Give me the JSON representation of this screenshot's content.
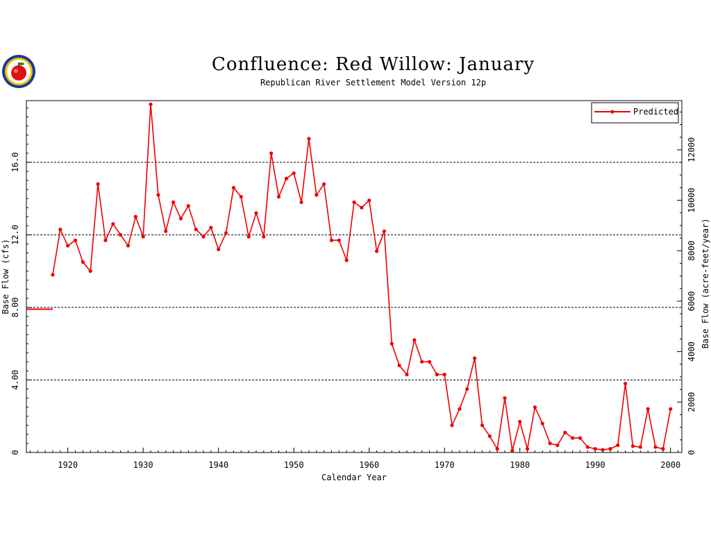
{
  "title": "Confluence: Red Willow: January",
  "subtitle": "Republican River Settlement Model Version 12p",
  "logo": {
    "icon": "apple-seal-icon"
  },
  "colors": {
    "series": "#ee0000",
    "axis": "#000000"
  },
  "chart_data": {
    "type": "line",
    "title": "Confluence: Red Willow: January",
    "xlabel": "Calendar Year",
    "ylabel": "Base Flow (cfs)",
    "y2label": "Base Flow (acre-feet/year)",
    "xlim": [
      1914.5,
      2001.5
    ],
    "ylim": [
      0,
      19.4
    ],
    "y2lim": [
      0,
      13950
    ],
    "xticks": [
      1920,
      1930,
      1940,
      1950,
      1960,
      1970,
      1980,
      1990,
      2000
    ],
    "xtick_labels": [
      "1920",
      "1930",
      "1940",
      "1950",
      "1960",
      "1970",
      "1980",
      "1990",
      "2000"
    ],
    "yticks": [
      0,
      4,
      8,
      12,
      16
    ],
    "ytick_labels": [
      "0",
      "4.00",
      "8.00",
      "12.0",
      "16.0"
    ],
    "y2ticks": [
      0,
      2000,
      4000,
      6000,
      8000,
      10000,
      12000
    ],
    "y2tick_labels": [
      "0",
      "2000",
      "4000",
      "6000",
      "8000",
      "10000",
      "12000"
    ],
    "grid_y": [
      4,
      8,
      12,
      16
    ],
    "legend": {
      "position": "top-right",
      "entries": [
        "Predicted"
      ]
    },
    "series": [
      {
        "name": "Predicted",
        "baseline": [
          [
            1914.5,
            7.9
          ],
          [
            1918,
            7.9
          ]
        ],
        "x": [
          1918,
          1919,
          1920,
          1921,
          1922,
          1923,
          1924,
          1925,
          1926,
          1927,
          1928,
          1929,
          1930,
          1931,
          1932,
          1933,
          1934,
          1935,
          1936,
          1937,
          1938,
          1939,
          1940,
          1941,
          1942,
          1943,
          1944,
          1945,
          1946,
          1947,
          1948,
          1949,
          1950,
          1951,
          1952,
          1953,
          1954,
          1955,
          1956,
          1957,
          1958,
          1959,
          1960,
          1961,
          1962,
          1963,
          1964,
          1965,
          1966,
          1967,
          1968,
          1969,
          1970,
          1971,
          1972,
          1973,
          1974,
          1975,
          1976,
          1977,
          1978,
          1979,
          1980,
          1981,
          1982,
          1983,
          1984,
          1985,
          1986,
          1987,
          1988,
          1989,
          1990,
          1991,
          1992,
          1993,
          1994,
          1995,
          1996,
          1997,
          1998,
          1999,
          2000
        ],
        "values": [
          9.8,
          12.3,
          11.4,
          11.7,
          10.5,
          10.0,
          14.8,
          11.7,
          12.6,
          12.0,
          11.4,
          13.0,
          11.9,
          19.2,
          14.2,
          12.2,
          13.8,
          12.9,
          13.6,
          12.3,
          11.9,
          12.4,
          11.2,
          12.1,
          14.6,
          14.1,
          11.9,
          13.2,
          11.9,
          16.5,
          14.1,
          15.1,
          15.4,
          13.8,
          17.3,
          14.2,
          14.8,
          11.7,
          11.7,
          10.6,
          13.8,
          13.5,
          13.9,
          11.1,
          12.2,
          6.0,
          4.8,
          4.3,
          6.2,
          5.0,
          5.0,
          4.3,
          4.3,
          1.5,
          2.4,
          3.5,
          5.2,
          1.5,
          0.9,
          0.2,
          3.0,
          0.1,
          1.7,
          0.2,
          2.5,
          1.6,
          0.5,
          0.4,
          1.1,
          0.8,
          0.8,
          0.3,
          0.2,
          0.15,
          0.2,
          0.4,
          3.8,
          0.35,
          0.3,
          2.4,
          0.3,
          0.2,
          2.4
        ]
      }
    ]
  }
}
